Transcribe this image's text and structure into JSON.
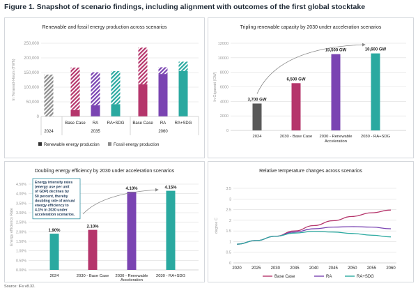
{
  "figure_title": "Figure 1. Snapshot of scenario findings, including alignment with outcomes of the first global stocktake",
  "source": "Source: IFs v8.32.",
  "colors": {
    "gray": "#595959",
    "magenta": "#b5356b",
    "purple": "#7a44b2",
    "teal": "#2aa9a0",
    "grid": "#dddddd",
    "axis_text": "#999999",
    "dark_text": "#222222",
    "annotation_border": "#2f8fa0"
  },
  "chart_data": [
    {
      "id": "energy_production",
      "type": "bar",
      "title": "Renewable and fossil energy production across scenarios",
      "ylabel": "In Terawatt-Hours (TWh)",
      "ylim": [
        0,
        250000
      ],
      "yticks": [
        "0",
        "50,000",
        "100,000",
        "150,000",
        "200,000",
        "250,000"
      ],
      "grid": true,
      "groups": [
        {
          "label": "2024",
          "bars": [
            {
              "label": "",
              "renewable": 0,
              "fossil": 143000,
              "color": "#595959"
            }
          ]
        },
        {
          "label": "2035",
          "bars": [
            {
              "label": "Base Case",
              "renewable": 22000,
              "fossil": 145000,
              "color": "#b5356b"
            },
            {
              "label": "RA",
              "renewable": 38000,
              "fossil": 113000,
              "color": "#7a44b2"
            },
            {
              "label": "RA+SDG",
              "renewable": 42000,
              "fossil": 113000,
              "color": "#2aa9a0"
            }
          ]
        },
        {
          "label": "2060",
          "bars": [
            {
              "label": "Base Case",
              "renewable": 110000,
              "fossil": 125000,
              "color": "#b5356b"
            },
            {
              "label": "RA",
              "renewable": 145000,
              "fossil": 23000,
              "color": "#7a44b2"
            },
            {
              "label": "RA+SDG",
              "renewable": 155000,
              "fossil": 32000,
              "color": "#2aa9a0"
            }
          ]
        }
      ],
      "legend": [
        "Renewable energy production",
        "Fossil energy production"
      ],
      "legend_position": "bottom"
    },
    {
      "id": "renewable_capacity",
      "type": "bar",
      "title": "Tripling renewable capacity by 2030 under acceleration scenarios",
      "ylabel": "In Gigawatt (GW)",
      "ylim": [
        0,
        12000
      ],
      "yticks": [
        "0",
        "2000",
        "4000",
        "6000",
        "8000",
        "10000",
        "12000"
      ],
      "grid": true,
      "categories": [
        "2024",
        "2030 - Base Case",
        "2030 - Renewable Acceleration",
        "2030 - RA+SDG"
      ],
      "values": [
        3700,
        6500,
        10500,
        10600
      ],
      "data_labels": [
        "3,700 GW",
        "6,500 GW",
        "10,500 GW",
        "10,600 GW"
      ],
      "colors": [
        "#595959",
        "#b5356b",
        "#7a44b2",
        "#2aa9a0"
      ]
    },
    {
      "id": "energy_efficiency",
      "type": "bar",
      "title": "Doubling energy efficiency by 2030 under acceleration scenarios",
      "ylabel": "Energy efficiency Rate",
      "ylim": [
        0,
        4.5
      ],
      "yticks": [
        "0.00%",
        "0.50%",
        "1.00%",
        "1.50%",
        "2.00%",
        "2.50%",
        "3.00%",
        "3.50%",
        "4.00%",
        "4.50%"
      ],
      "grid": true,
      "categories": [
        "2024",
        "2030 - Base Case",
        "2030 - Renewable Acceleration",
        "2030 - RA+SDG"
      ],
      "values": [
        1.9,
        2.1,
        4.1,
        4.15
      ],
      "data_labels": [
        "1.90%",
        "2.10%",
        "4.10%",
        "4.15%"
      ],
      "colors": [
        "#2aa9a0",
        "#b5356b",
        "#7a44b2",
        "#2aa9a0"
      ],
      "annotation": [
        "Energy intensity rates",
        "(energy use per unit",
        "of GDP) declines by",
        "50 percent, thereby",
        "doubling rate of annual",
        "energy efficiency to",
        "4.1% in 2030 under",
        "acceleration scenarios."
      ]
    },
    {
      "id": "temperature",
      "type": "line",
      "title": "Relative temperature changes across scenarios",
      "ylabel": "degree C",
      "ylim": [
        0,
        3.5
      ],
      "yticks": [
        "0",
        "0.5",
        "1",
        "1.5",
        "2",
        "2.5",
        "3",
        "3.5"
      ],
      "xticks": [
        "2020",
        "2025",
        "2030",
        "2035",
        "2040",
        "2045",
        "2050",
        "2055",
        "2060"
      ],
      "grid": true,
      "x": [
        2020,
        2025,
        2030,
        2035,
        2040,
        2045,
        2050,
        2055,
        2060
      ],
      "series": [
        {
          "name": "Base Case",
          "color": "#b5356b",
          "values": [
            0.88,
            1.05,
            1.25,
            1.5,
            1.75,
            1.98,
            2.18,
            2.35,
            2.48
          ]
        },
        {
          "name": "RA",
          "color": "#7a44b2",
          "values": [
            0.88,
            1.05,
            1.25,
            1.45,
            1.6,
            1.68,
            1.7,
            1.68,
            1.6
          ]
        },
        {
          "name": "RA+SDG",
          "color": "#2aa9a0",
          "values": [
            0.88,
            1.05,
            1.25,
            1.4,
            1.48,
            1.45,
            1.38,
            1.3,
            1.22
          ]
        }
      ],
      "legend_position": "bottom"
    }
  ]
}
